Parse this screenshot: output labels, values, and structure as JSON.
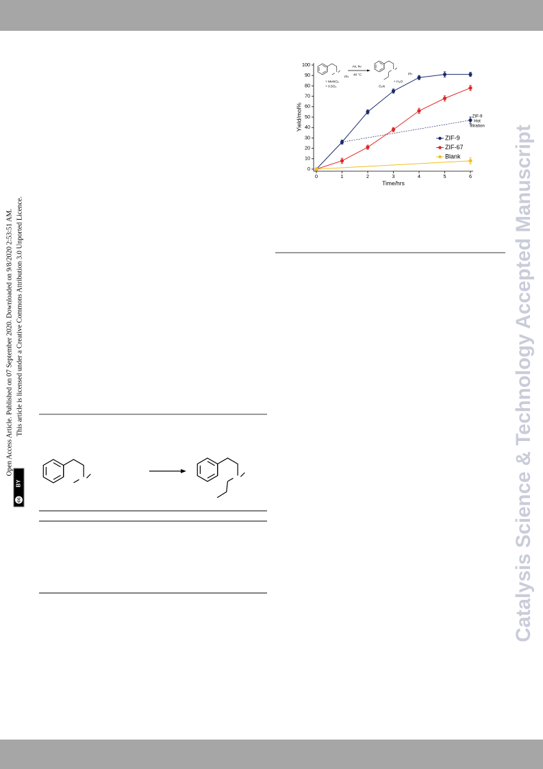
{
  "sidebar": {
    "line1": "Open Access Article. Published on 07 September 2020. Downloaded on 9/8/2020 2:53:51 AM.",
    "line2": "This article is licensed under a Creative Commons Attribution 3.0 Unported Licence.",
    "badge": {
      "icon": "cc",
      "label": "BY"
    }
  },
  "watermark": "Catalysis Science & Technology Accepted Manuscript",
  "chart_data": {
    "type": "line",
    "xlabel": "Time/hrs",
    "ylabel": "Yield/mol%",
    "x": [
      0,
      1,
      2,
      3,
      4,
      5,
      6
    ],
    "xlim": [
      0,
      6
    ],
    "xticks": [
      0,
      1,
      2,
      3,
      4,
      5,
      6
    ],
    "ylim": [
      0,
      100
    ],
    "yticks": [
      0,
      10,
      20,
      30,
      40,
      50,
      60,
      70,
      80,
      90,
      100
    ],
    "series": [
      {
        "name": "ZIF-9",
        "color": "#1b2a6b",
        "values": [
          0,
          26,
          55,
          75,
          88,
          91,
          91
        ],
        "errors": [
          1,
          2,
          2,
          2,
          2,
          2.5,
          2
        ]
      },
      {
        "name": "ZIF-67",
        "color": "#e02424",
        "values": [
          0,
          8,
          21,
          38,
          56,
          68,
          78
        ],
        "errors": [
          1,
          2.5,
          2,
          2,
          2.5,
          2.5,
          2.5
        ]
      },
      {
        "name": "Blank",
        "color": "#f0c020",
        "x": [
          0,
          6
        ],
        "values": [
          0,
          8
        ],
        "errors": [
          1,
          3
        ]
      }
    ],
    "hot_filtration": {
      "label": [
        "ZIF-9",
        "Hot",
        "filtration"
      ],
      "color": "#1b2a6b",
      "x": [
        1,
        6
      ],
      "values": [
        26,
        47
      ],
      "errors": [
        2,
        3
      ]
    },
    "inset": {
      "conditions_top": "Air, hν",
      "conditions_bottom": "40 °C",
      "reagent1": "+ MeNO₂",
      "reagent2": "+ 0.5O₂",
      "ph_reactant": "Ph",
      "ph_product": "Ph",
      "nitro": "O₂N",
      "byproduct": "+ H₂O"
    }
  }
}
